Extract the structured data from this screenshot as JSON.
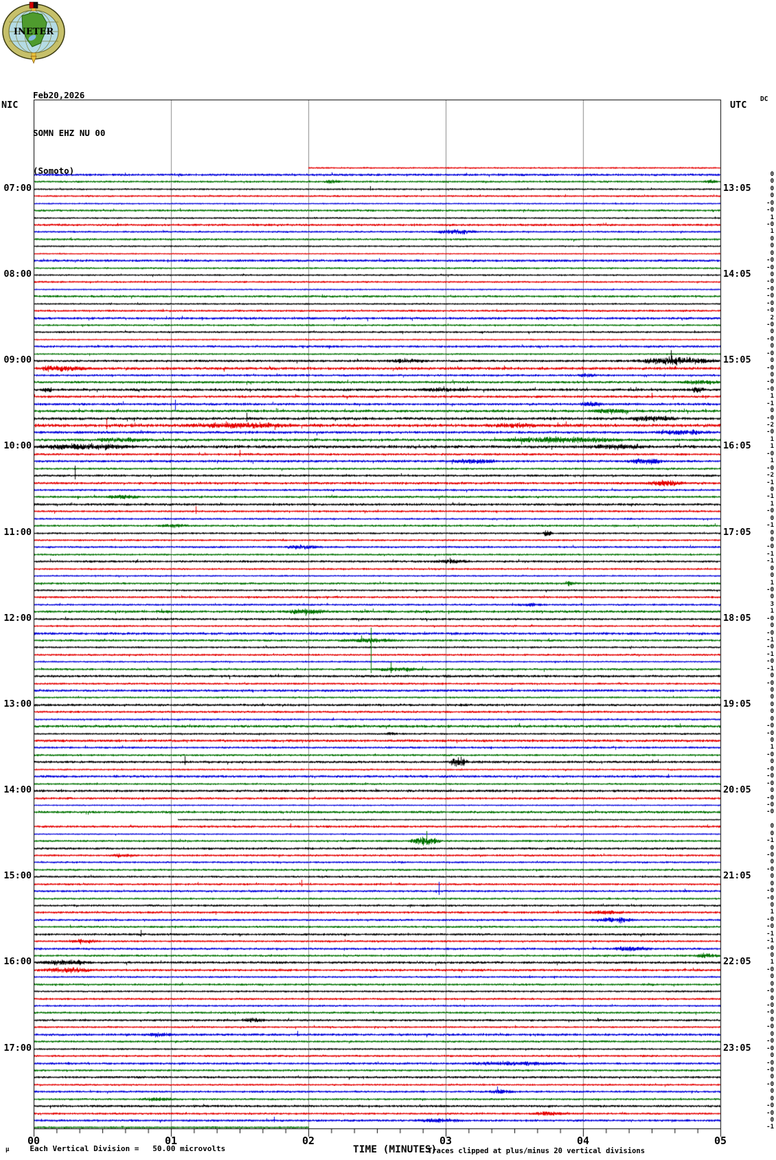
{
  "header": {
    "date": "Feb20,2026",
    "station": "SOMN EHZ NU 00",
    "location": "(Somoto)",
    "logo_text": "INETER"
  },
  "axes": {
    "left_tz": "NIC",
    "right_tz": "UTC",
    "dc_header": "DC",
    "xlabel": "TIME (MINUTES)",
    "x_tick_labels": [
      "00",
      "01",
      "02",
      "03",
      "04",
      "05"
    ]
  },
  "footer": {
    "unit_symbol": "μ",
    "scale_note": "Each Vertical Division =   50.00 microvolts",
    "clip_note": "Traces clipped at plus/minus 20 vertical divisions"
  },
  "chart_data": {
    "type": "line",
    "subtype": "helicorder",
    "title": "SOMN EHZ NU 00 (Somoto) webicorder, Feb20,2026",
    "minutes_per_line": 5,
    "lines_per_hour": 12,
    "x_range_minutes": [
      0,
      5
    ],
    "x_gridline_minutes": [
      1,
      2,
      3,
      4
    ],
    "x_minor_ticks_per_minute": 6,
    "num_rows": 135,
    "color_cycle": [
      "red",
      "blue",
      "green",
      "black"
    ],
    "colors": {
      "red": "#e60000",
      "blue": "#0000dd",
      "green": "#007300",
      "black": "#000000",
      "grid": "#8a8a8a",
      "frame": "#000000",
      "text": "#000000"
    },
    "hour_label_rows": [
      3,
      15,
      27,
      39,
      51,
      63,
      75,
      87,
      99,
      111,
      123
    ],
    "left_hour_labels": [
      "07:00",
      "08:00",
      "09:00",
      "10:00",
      "11:00",
      "12:00",
      "13:00",
      "14:00",
      "15:00",
      "16:00",
      "17:00"
    ],
    "right_hour_labels": [
      "13:05",
      "14:05",
      "15:05",
      "16:05",
      "17:05",
      "18:05",
      "19:05",
      "20:05",
      "21:05",
      "22:05",
      "23:05"
    ],
    "first_row": {
      "index": 0,
      "start_minute": 2.0
    },
    "gap_row": {
      "index": 91,
      "start_minute": 1.05
    },
    "last_row": {
      "index": 134,
      "end_minute": 2.0
    },
    "dc_values": [
      "",
      "0",
      "0",
      "0",
      "0",
      "-0",
      "-0",
      "1",
      "-0",
      "1",
      "0",
      "0",
      "0",
      "-0",
      "-0",
      "0",
      "-0",
      "-0",
      "-0",
      "-0",
      "-0",
      "2",
      "-0",
      "0",
      "-0",
      "0",
      "-0",
      "0",
      "-0",
      "0",
      "-0",
      "-0",
      "1",
      "-1",
      "0",
      "-0",
      "-2",
      "-0",
      "1",
      "1",
      "-0",
      "1",
      "-0",
      "-2",
      "-1",
      "0",
      "-1",
      "1",
      "-0",
      "0",
      "-1",
      "0",
      "0",
      "-0",
      "-1",
      "-1",
      "0",
      "0",
      "1",
      "-0",
      "0",
      "3",
      "1",
      "-0",
      "0",
      "-0",
      "-1",
      "-0",
      "-1",
      "-0",
      "-1",
      "0",
      "-0",
      "0",
      "0",
      "0",
      "0",
      "0",
      "-0",
      "-0",
      "0",
      "1",
      "-0",
      "0",
      "-0",
      "-0",
      "-0",
      "0",
      "-0",
      "-0",
      "-0",
      "",
      "0",
      "0",
      "-1",
      "0",
      "-0",
      "0",
      "-0",
      "0",
      "0",
      "-0",
      "-0",
      "0",
      "1",
      "-0",
      "-0",
      "-1",
      "-1",
      "-0",
      "0",
      "1",
      "-0",
      "0",
      "0",
      "-0",
      "0",
      "-0",
      "-0",
      "0",
      "-0",
      "0",
      "-0",
      "-0",
      "0",
      "-0",
      "-0",
      "0",
      "-0",
      "0",
      "0",
      "-0",
      "-0",
      "0",
      "-1"
    ],
    "row_amplitudes": [
      1.0,
      1.7,
      1.2,
      1.1,
      1.2,
      0.8,
      1.5,
      1.1,
      1.6,
      1.2,
      1.4,
      1.0,
      0.7,
      1.8,
      1.2,
      1.1,
      1.2,
      0.8,
      1.6,
      1.0,
      1.4,
      1.9,
      1.2,
      1.3,
      0.8,
      1.6,
      1.0,
      1.7,
      2.2,
      1.5,
      1.8,
      2.0,
      1.8,
      1.8,
      2.0,
      2.2,
      2.6,
      2.0,
      2.2,
      2.4,
      1.6,
      1.8,
      1.4,
      1.6,
      1.8,
      1.4,
      1.6,
      1.8,
      1.4,
      1.2,
      1.4,
      1.2,
      1.2,
      1.4,
      1.2,
      1.6,
      1.2,
      1.0,
      1.4,
      1.2,
      1.4,
      1.3,
      1.9,
      1.5,
      1.2,
      1.9,
      1.6,
      1.2,
      1.4,
      1.0,
      1.5,
      1.8,
      1.3,
      1.8,
      1.1,
      1.8,
      1.5,
      1.2,
      2.0,
      1.2,
      2.0,
      1.4,
      1.4,
      1.8,
      1.0,
      1.8,
      1.2,
      1.8,
      1.6,
      0.8,
      1.8,
      0.7,
      1.6,
      0.8,
      1.4,
      1.6,
      1.4,
      1.2,
      1.4,
      1.3,
      1.4,
      1.5,
      1.2,
      1.4,
      1.6,
      1.4,
      1.4,
      1.6,
      1.3,
      1.6,
      1.4,
      1.8,
      1.8,
      1.2,
      1.4,
      1.2,
      1.4,
      1.2,
      1.4,
      1.6,
      1.2,
      1.8,
      1.4,
      1.2,
      1.4,
      1.6,
      1.4,
      1.6,
      1.2,
      1.4,
      1.3,
      1.7,
      1.4,
      1.6,
      1.2
    ],
    "events_format": [
      "row_index",
      "start_minute",
      "duration_minutes",
      "amplitude_px"
    ],
    "events": [
      [
        2,
        2.1,
        0.15,
        3
      ],
      [
        2,
        4.88,
        0.1,
        4
      ],
      [
        3,
        2.45,
        0.04,
        4
      ],
      [
        9,
        2.9,
        0.35,
        4
      ],
      [
        27,
        2.55,
        0.35,
        3
      ],
      [
        27,
        4.35,
        0.65,
        7
      ],
      [
        28,
        0.0,
        0.4,
        5
      ],
      [
        29,
        3.95,
        0.15,
        3
      ],
      [
        30,
        4.7,
        0.3,
        4
      ],
      [
        31,
        0.05,
        0.1,
        4
      ],
      [
        31,
        2.8,
        0.4,
        3
      ],
      [
        31,
        4.75,
        0.15,
        5
      ],
      [
        32,
        4.5,
        0.06,
        5
      ],
      [
        33,
        1.03,
        0.05,
        -10
      ],
      [
        33,
        3.95,
        0.2,
        4
      ],
      [
        34,
        4.05,
        0.3,
        4
      ],
      [
        35,
        1.55,
        0.06,
        8
      ],
      [
        35,
        4.3,
        0.4,
        4
      ],
      [
        36,
        0.53,
        0.05,
        10
      ],
      [
        36,
        1.05,
        0.9,
        4
      ],
      [
        36,
        3.3,
        0.4,
        4
      ],
      [
        37,
        4.5,
        0.45,
        4
      ],
      [
        38,
        0.4,
        0.5,
        3
      ],
      [
        38,
        3.35,
        1.0,
        5
      ],
      [
        39,
        0.0,
        0.75,
        5
      ],
      [
        39,
        4.0,
        0.5,
        4
      ],
      [
        40,
        1.5,
        0.05,
        6
      ],
      [
        41,
        3.0,
        0.4,
        4
      ],
      [
        41,
        4.3,
        0.3,
        5
      ],
      [
        43,
        0.3,
        0.05,
        14
      ],
      [
        44,
        4.45,
        0.3,
        5
      ],
      [
        46,
        0.5,
        0.3,
        3
      ],
      [
        48,
        1.18,
        0.05,
        7
      ],
      [
        50,
        0.9,
        0.25,
        3
      ],
      [
        51,
        3.7,
        0.08,
        5
      ],
      [
        53,
        1.8,
        0.3,
        3
      ],
      [
        55,
        2.9,
        0.3,
        3
      ],
      [
        58,
        3.85,
        0.08,
        4
      ],
      [
        61,
        3.5,
        0.25,
        3
      ],
      [
        62,
        1.8,
        0.35,
        4
      ],
      [
        66,
        2.2,
        0.5,
        3
      ],
      [
        70,
        2.45,
        0.4,
        3
      ],
      [
        70,
        2.455,
        0.04,
        60
      ],
      [
        70,
        2.6,
        0.04,
        10
      ],
      [
        79,
        2.55,
        0.1,
        3
      ],
      [
        83,
        1.1,
        0.05,
        8
      ],
      [
        83,
        3.02,
        0.15,
        9
      ],
      [
        92,
        1.87,
        0.04,
        4
      ],
      [
        94,
        2.72,
        0.25,
        8
      ],
      [
        94,
        2.86,
        0.05,
        14
      ],
      [
        96,
        0.55,
        0.2,
        3
      ],
      [
        100,
        1.95,
        0.06,
        6
      ],
      [
        101,
        2.95,
        0.05,
        13
      ],
      [
        104,
        4.0,
        0.3,
        3
      ],
      [
        105,
        4.05,
        0.35,
        4
      ],
      [
        107,
        0.78,
        0.05,
        6
      ],
      [
        108,
        0.2,
        0.3,
        3
      ],
      [
        109,
        4.2,
        0.3,
        4
      ],
      [
        110,
        4.8,
        0.2,
        4
      ],
      [
        111,
        0.0,
        0.45,
        4
      ],
      [
        112,
        0.05,
        0.4,
        4
      ],
      [
        119,
        1.5,
        0.2,
        3
      ],
      [
        121,
        0.79,
        0.25,
        3
      ],
      [
        121,
        1.92,
        0.04,
        5
      ],
      [
        125,
        3.1,
        0.8,
        3
      ],
      [
        129,
        3.3,
        0.2,
        4
      ],
      [
        130,
        0.75,
        0.3,
        3
      ],
      [
        132,
        3.6,
        0.3,
        3
      ],
      [
        133,
        1.75,
        0.05,
        5
      ],
      [
        133,
        2.75,
        0.4,
        3
      ]
    ]
  }
}
